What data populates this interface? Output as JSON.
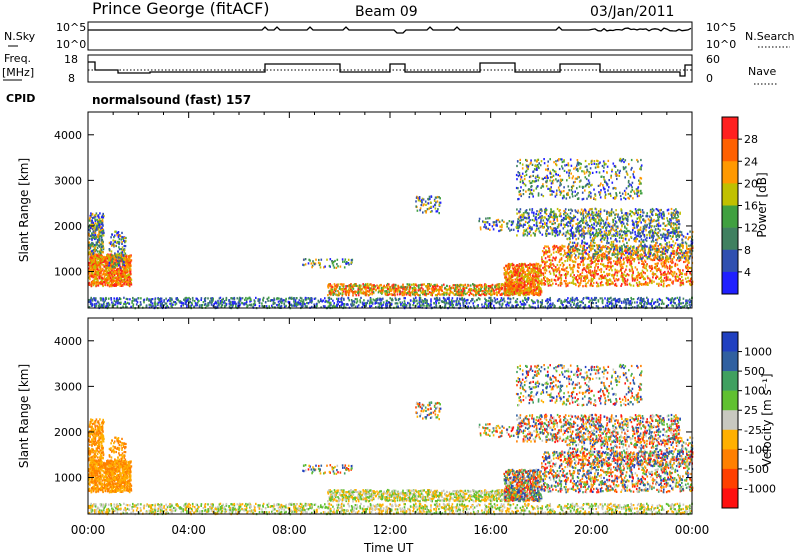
{
  "header": {
    "station": "Prince George (fitACF)",
    "beam": "Beam 09",
    "date": "03/Jan/2011"
  },
  "top_panels": {
    "nsky_label": "N.Sky",
    "nsky_ticks": [
      "10^5",
      "10^0"
    ],
    "nsearch_label": "N.Search",
    "nsearch_ticks": [
      "10^5",
      "10^0"
    ],
    "freq_label_1": "Freq.",
    "freq_label_2": "[MHz]",
    "freq_ticks": [
      "18",
      "8"
    ],
    "nave_label": "Nave",
    "nave_ticks": [
      "60",
      "0"
    ],
    "cpid_label": "CPID",
    "cpid_value": "normalsound (fast) 157"
  },
  "colors": {
    "power_scale": [
      "#2020ff",
      "#3050b0",
      "#408060",
      "#40a040",
      "#c0c000",
      "#ff9900",
      "#ff6000",
      "#ff2020"
    ],
    "velocity_scale": [
      "#2040c0",
      "#3060a0",
      "#40a060",
      "#60c030",
      "#c8c8c0",
      "#ffb000",
      "#ff8000",
      "#ff4000",
      "#ff1010"
    ]
  },
  "chart_data": [
    {
      "type": "heatmap",
      "ylabel": "Slant Range [km]",
      "xlabel": "Time UT",
      "x_ticks": [
        "00:00",
        "04:00",
        "08:00",
        "12:00",
        "16:00",
        "20:00",
        "00:00"
      ],
      "y_ticks": [
        "1000",
        "2000",
        "3000",
        "4000"
      ],
      "ylim": [
        200,
        4500
      ],
      "colorbar": {
        "label": "Power [dB]",
        "ticks": [
          "4",
          "8",
          "12",
          "16",
          "20",
          "24",
          "28"
        ]
      }
    },
    {
      "type": "heatmap",
      "ylabel": "Slant Range [km]",
      "xlabel": "Time UT",
      "x_ticks": [
        "00:00",
        "04:00",
        "08:00",
        "12:00",
        "16:00",
        "20:00",
        "00:00"
      ],
      "y_ticks": [
        "1000",
        "2000",
        "3000",
        "4000"
      ],
      "ylim": [
        200,
        4500
      ],
      "colorbar": {
        "label": "Velocity [m s⁻¹]",
        "ticks": [
          "1000",
          "500",
          "100",
          "25",
          "-25",
          "-100",
          "-500",
          "-1000"
        ]
      }
    }
  ]
}
